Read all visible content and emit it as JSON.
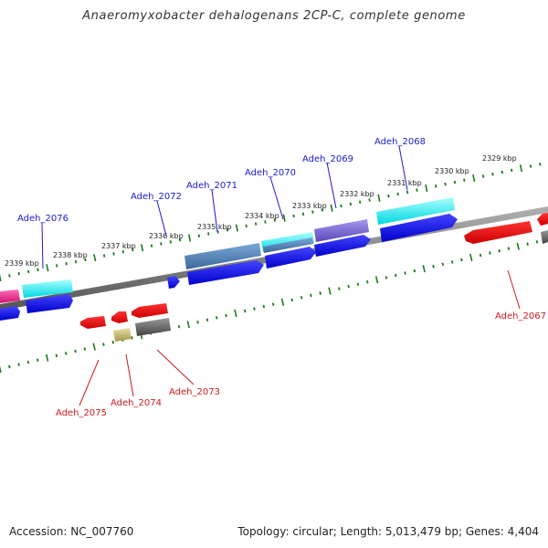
{
  "title": "Anaeromyxobacter dehalogenans 2CP-C, complete genome",
  "footer": {
    "accession": "Accession: NC_007760",
    "summary": "Topology: circular; Length: 5,013,479 bp; Genes: 4,404"
  },
  "kbp_ticks": [
    "2339 kbp",
    "2338 kbp",
    "2337 kbp",
    "2336 kbp",
    "2335 kbp",
    "2334 kbp",
    "2333 kbp",
    "2332 kbp",
    "2331 kbp",
    "2330 kbp",
    "2329 kbp"
  ],
  "gene_labels_forward": [
    "Adeh_2076",
    "Adeh_2072",
    "Adeh_2071",
    "Adeh_2070",
    "Adeh_2069",
    "Adeh_2068"
  ],
  "gene_labels_reverse": [
    "Adeh_2067",
    "Adeh_2073",
    "Adeh_2074",
    "Adeh_2075"
  ],
  "colors": {
    "forward_label": "#1a1acc",
    "reverse_label": "#cc1a1a",
    "tick": "#1a7a1a",
    "backbone": "#808080",
    "cds_forward": "#0000ee",
    "cds_reverse": "#ee0000",
    "feature_cyan": "#00e5ee",
    "feature_steelblue": "#4a80b8",
    "feature_slateblue": "#7b68d8",
    "feature_magenta": "#e8208a",
    "feature_gray": "#666666",
    "feature_khaki": "#c8c070"
  }
}
